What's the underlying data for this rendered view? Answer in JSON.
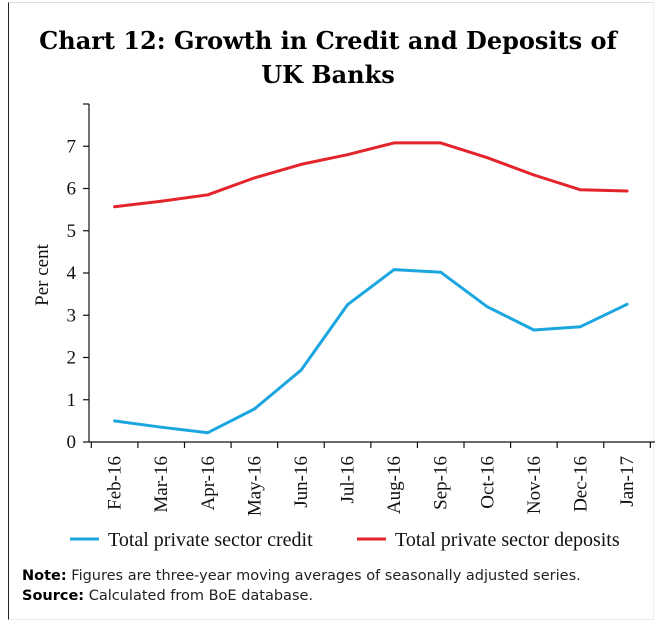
{
  "chart_data": {
    "type": "line",
    "title": "Chart 12: Growth in Credit and Deposits of UK Banks",
    "ylabel": "Per cent",
    "xlabel": "",
    "categories": [
      "Feb-16",
      "Mar-16",
      "Apr-16",
      "May-16",
      "Jun-16",
      "Jul-16",
      "Aug-16",
      "Sep-16",
      "Oct-16",
      "Nov-16",
      "Dec-16",
      "Jan-17"
    ],
    "ylim": [
      0,
      8
    ],
    "yticks": [
      "0",
      "1",
      "2",
      "3",
      "4",
      "5",
      "6",
      "7"
    ],
    "grid": false,
    "legend_position": "bottom",
    "series": [
      {
        "name": "Total private sector credit",
        "color": "#1ba6e0",
        "values": [
          0.5,
          0.35,
          0.22,
          0.78,
          1.7,
          3.25,
          4.08,
          4.02,
          3.2,
          2.65,
          2.73,
          3.26
        ]
      },
      {
        "name": "Total private sector deposits",
        "color": "#e3242b",
        "values": [
          5.57,
          5.7,
          5.85,
          6.25,
          6.57,
          6.8,
          7.08,
          7.08,
          6.73,
          6.32,
          5.97,
          5.94
        ]
      }
    ]
  },
  "footer": {
    "note_label": "Note:",
    "note_text": " Figures are three-year moving averages of seasonally adjusted series.",
    "source_label": "Source:",
    "source_text": " Calculated from BoE database."
  }
}
